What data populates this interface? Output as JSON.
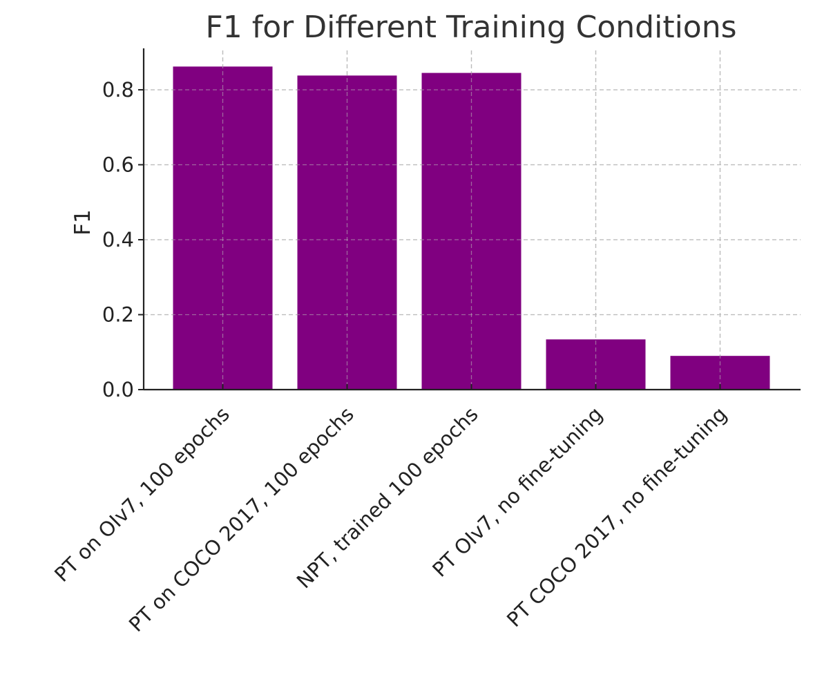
{
  "chart_data": {
    "type": "bar",
    "title": "F1 for Different Training Conditions",
    "xlabel": "",
    "ylabel": "F1",
    "categories": [
      "PT on OIv7, 100 epochs",
      "PT on COCO 2017, 100 epochs",
      "NPT, trained 100 epochs",
      "PT OIv7, no fine-tuning",
      "PT COCO 2017, no fine-tuning"
    ],
    "values": [
      0.862,
      0.838,
      0.845,
      0.134,
      0.09
    ],
    "ylim": [
      0,
      0.905
    ],
    "yticks": [
      0.0,
      0.2,
      0.4,
      0.6,
      0.8
    ],
    "ytick_labels": [
      "0.0",
      "0.2",
      "0.4",
      "0.6",
      "0.8"
    ],
    "grid": true,
    "bar_color": "#800080"
  }
}
